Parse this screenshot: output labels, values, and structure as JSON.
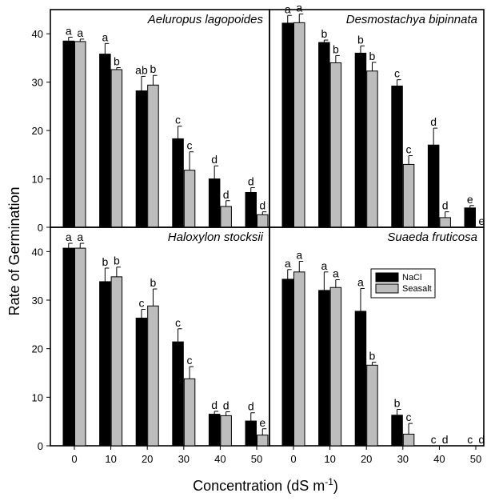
{
  "chart_data": {
    "type": "bar",
    "ylabel": "Rate of Germination",
    "xlabel": {
      "prefix": "Concentration (dS m",
      "sup": "-1",
      "suffix": ")"
    },
    "categories": [
      "0",
      "10",
      "20",
      "30",
      "40",
      "50"
    ],
    "ylim": [
      0,
      45
    ],
    "yticks": [
      0,
      10,
      20,
      30,
      40
    ],
    "grid": false,
    "legend": {
      "position": "inside-right of Suaeda fruticosa panel",
      "entries": [
        "NaCl",
        "Seasalt"
      ]
    },
    "series_colors": {
      "NaCl": "#000000",
      "Seasalt": "#bdbdbd"
    },
    "panels": [
      {
        "title": "Aeluropus lagopoides",
        "series": [
          {
            "name": "NaCl",
            "values": [
              38.5,
              35.8,
              28.2,
              18.3,
              10.0,
              7.2
            ],
            "errors": [
              0.8,
              2.2,
              3.0,
              2.6,
              2.7,
              1.0
            ],
            "letters": [
              "a",
              "a",
              "ab",
              "c",
              "d",
              "d"
            ]
          },
          {
            "name": "Seasalt",
            "values": [
              38.4,
              32.6,
              29.4,
              11.8,
              4.3,
              2.6
            ],
            "errors": [
              0.5,
              0.4,
              2.0,
              3.8,
              1.2,
              0.6
            ],
            "letters": [
              "a",
              "b",
              "b",
              "c",
              "d",
              "d"
            ]
          }
        ]
      },
      {
        "title": "Desmostachya bipinnata",
        "series": [
          {
            "name": "NaCl",
            "values": [
              42.2,
              38.2,
              36.0,
              29.2,
              17.0,
              4.0
            ],
            "errors": [
              1.6,
              0.5,
              1.5,
              1.3,
              3.5,
              0.5
            ],
            "letters": [
              "a",
              "b",
              "b",
              "c",
              "d",
              "e"
            ]
          },
          {
            "name": "Seasalt",
            "values": [
              42.3,
              34.0,
              32.3,
              13.0,
              2.0,
              0.0
            ],
            "errors": [
              1.8,
              1.5,
              1.8,
              1.8,
              1.2,
              0.0
            ],
            "letters": [
              "a",
              "b",
              "b",
              "c",
              "d",
              "e"
            ]
          }
        ]
      },
      {
        "title": "Haloxylon stocksii",
        "series": [
          {
            "name": "NaCl",
            "values": [
              40.7,
              33.8,
              26.3,
              21.4,
              6.5,
              5.1
            ],
            "errors": [
              1.0,
              2.8,
              1.8,
              2.7,
              0.6,
              1.7
            ],
            "letters": [
              "a",
              "b",
              "c",
              "c",
              "d",
              "d"
            ]
          },
          {
            "name": "Seasalt",
            "values": [
              40.7,
              34.8,
              28.8,
              13.8,
              6.2,
              2.2
            ],
            "errors": [
              1.0,
              2.0,
              3.5,
              2.5,
              0.8,
              1.3
            ],
            "letters": [
              "a",
              "b",
              "b",
              "c",
              "d",
              "e"
            ]
          }
        ]
      },
      {
        "title": "Suaeda fruticosa",
        "series": [
          {
            "name": "NaCl",
            "values": [
              34.3,
              32.0,
              27.7,
              6.3,
              0.0,
              0.0
            ],
            "errors": [
              2.0,
              3.8,
              4.7,
              1.2,
              0.0,
              0.0
            ],
            "letters": [
              "a",
              "a",
              "a",
              "b",
              "c",
              "c"
            ]
          },
          {
            "name": "Seasalt",
            "values": [
              35.8,
              32.6,
              16.6,
              2.4,
              0.0,
              0.0
            ],
            "errors": [
              2.2,
              1.6,
              0.6,
              2.2,
              0.0,
              0.0
            ],
            "letters": [
              "a",
              "a",
              "b",
              "c",
              "d",
              "d"
            ]
          }
        ]
      }
    ]
  }
}
